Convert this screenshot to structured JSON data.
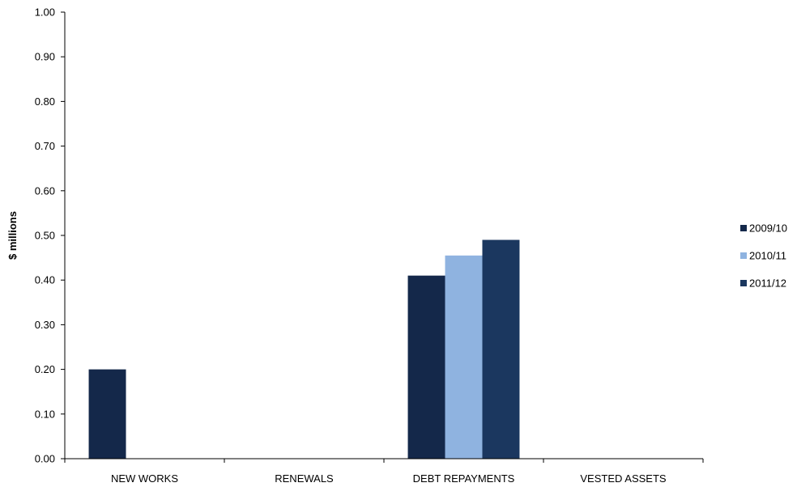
{
  "chart_data": {
    "type": "bar",
    "title": "",
    "xlabel": "",
    "ylabel": "$ millions",
    "ylim": [
      0,
      1.0
    ],
    "yticks": [
      "0.00",
      "0.10",
      "0.20",
      "0.30",
      "0.40",
      "0.50",
      "0.60",
      "0.70",
      "0.80",
      "0.90",
      "1.00"
    ],
    "categories": [
      "NEW WORKS",
      "RENEWALS",
      "DEBT REPAYMENTS",
      "VESTED ASSETS"
    ],
    "series": [
      {
        "name": "2009/10",
        "color": "#14284a",
        "values": [
          0.2,
          0,
          0.41,
          0
        ]
      },
      {
        "name": "2010/11",
        "color": "#8fb3e0",
        "values": [
          0,
          0,
          0.455,
          0
        ]
      },
      {
        "name": "2011/12",
        "color": "#1b375f",
        "values": [
          0,
          0,
          0.49,
          0
        ]
      }
    ],
    "grid": false,
    "legend_position": "right"
  }
}
